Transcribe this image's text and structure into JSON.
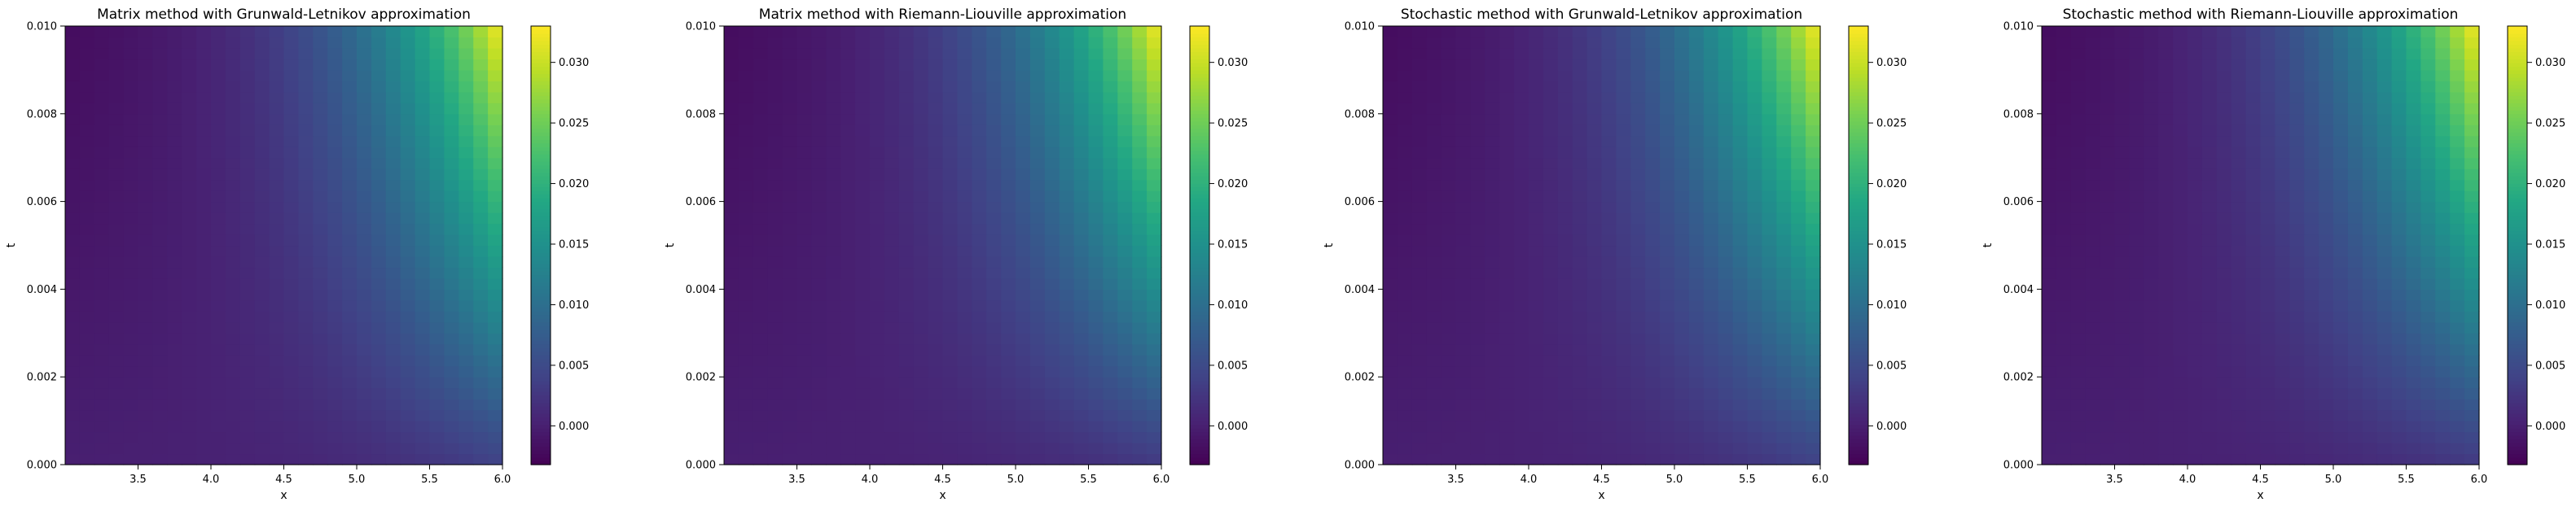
{
  "chart_data": [
    {
      "type": "heatmap",
      "title": "Matrix method with Grunwald-Letnikov approximation",
      "xlabel": "x",
      "ylabel": "t",
      "xlim": [
        3.0,
        6.0
      ],
      "ylim": [
        0.0,
        0.01
      ],
      "x_ticks": [
        "3.5",
        "4.0",
        "4.5",
        "5.0",
        "5.5",
        "6.0"
      ],
      "y_ticks": [
        "0.000",
        "0.002",
        "0.004",
        "0.006",
        "0.008",
        "0.010"
      ],
      "colorbar": {
        "vmin": -0.0032,
        "vmax": 0.033,
        "ticks": [
          "0.000",
          "0.005",
          "0.010",
          "0.015",
          "0.020",
          "0.025",
          "0.030"
        ]
      },
      "colormap": "viridis",
      "z_corners": {
        "x3_t0": 0.0,
        "x6_t0": 0.004,
        "x3_t1": -0.002,
        "x6_t1": 0.033
      }
    },
    {
      "type": "heatmap",
      "title": "Matrix method with Riemann-Liouville approximation",
      "xlabel": "x",
      "ylabel": "t",
      "xlim": [
        3.0,
        6.0
      ],
      "ylim": [
        0.0,
        0.01
      ],
      "x_ticks": [
        "3.5",
        "4.0",
        "4.5",
        "5.0",
        "5.5",
        "6.0"
      ],
      "y_ticks": [
        "0.000",
        "0.002",
        "0.004",
        "0.006",
        "0.008",
        "0.010"
      ],
      "colorbar": {
        "vmin": -0.0032,
        "vmax": 0.033,
        "ticks": [
          "0.000",
          "0.005",
          "0.010",
          "0.015",
          "0.020",
          "0.025",
          "0.030"
        ]
      },
      "colormap": "viridis",
      "z_corners": {
        "x3_t0": 0.0,
        "x6_t0": 0.003,
        "x3_t1": -0.002,
        "x6_t1": 0.033
      }
    },
    {
      "type": "heatmap",
      "title": "Stochastic method with Grunwald-Letnikov approximation",
      "xlabel": "x",
      "ylabel": "t",
      "xlim": [
        3.0,
        6.0
      ],
      "ylim": [
        0.0,
        0.01
      ],
      "x_ticks": [
        "3.5",
        "4.0",
        "4.5",
        "5.0",
        "5.5",
        "6.0"
      ],
      "y_ticks": [
        "0.000",
        "0.002",
        "0.004",
        "0.006",
        "0.008",
        "0.010"
      ],
      "colorbar": {
        "vmin": -0.0032,
        "vmax": 0.033,
        "ticks": [
          "0.000",
          "0.005",
          "0.010",
          "0.015",
          "0.020",
          "0.025",
          "0.030"
        ]
      },
      "colormap": "viridis",
      "z_corners": {
        "x3_t0": 0.0,
        "x6_t0": 0.004,
        "x3_t1": -0.002,
        "x6_t1": 0.033
      }
    },
    {
      "type": "heatmap",
      "title": "Stochastic method with Riemann-Liouville approximation",
      "xlabel": "x",
      "ylabel": "t",
      "xlim": [
        3.0,
        6.0
      ],
      "ylim": [
        0.0,
        0.01
      ],
      "x_ticks": [
        "3.5",
        "4.0",
        "4.5",
        "5.0",
        "5.5",
        "6.0"
      ],
      "y_ticks": [
        "0.000",
        "0.002",
        "0.004",
        "0.006",
        "0.008",
        "0.010"
      ],
      "colorbar": {
        "vmin": -0.0032,
        "vmax": 0.033,
        "ticks": [
          "0.000",
          "0.005",
          "0.010",
          "0.015",
          "0.020",
          "0.025",
          "0.030"
        ]
      },
      "colormap": "viridis",
      "z_corners": {
        "x3_t0": 0.0,
        "x6_t0": 0.003,
        "x3_t1": -0.002,
        "x6_t1": 0.033
      }
    }
  ]
}
